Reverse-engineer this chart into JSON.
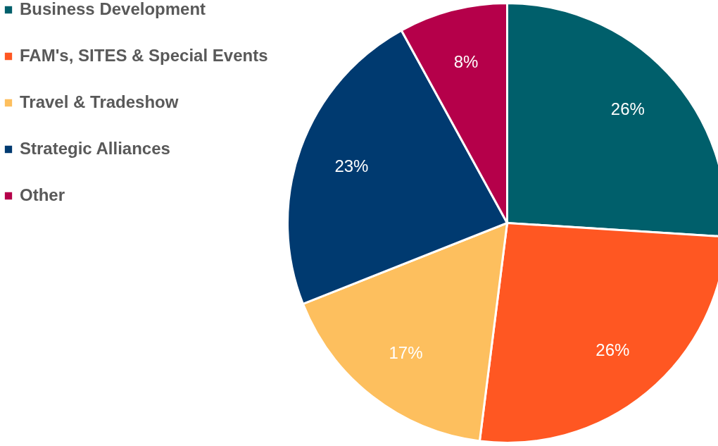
{
  "chart_data": {
    "type": "pie",
    "categories": [
      "Business Development",
      "FAM's, SITES & Special Events",
      "Travel & Tradeshow",
      "Strategic Alliances",
      "Other"
    ],
    "values": [
      26,
      26,
      17,
      23,
      8
    ],
    "value_labels": [
      "26%",
      "26%",
      "17%",
      "23%",
      "8%"
    ],
    "colors": [
      "#005f6b",
      "#ff5722",
      "#fdbf5e",
      "#003a70",
      "#b5004a"
    ],
    "legend": "left"
  }
}
